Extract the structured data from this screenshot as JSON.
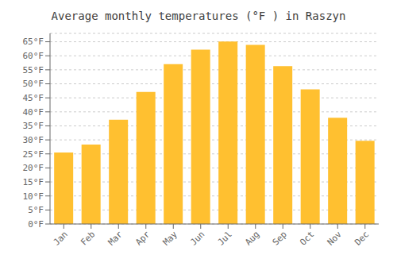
{
  "chart_data": {
    "type": "bar",
    "title": "Average monthly temperatures (°F ) in Raszyn",
    "categories": [
      "Jan",
      "Feb",
      "Mar",
      "Apr",
      "May",
      "Jun",
      "Jul",
      "Aug",
      "Sep",
      "Oct",
      "Nov",
      "Dec"
    ],
    "values": [
      25.5,
      28.3,
      37.2,
      47.1,
      57.0,
      62.2,
      65.1,
      63.9,
      56.3,
      48.0,
      37.9,
      29.7
    ],
    "color": "#FFC030",
    "ylim": [
      0,
      68
    ],
    "yticks": [
      {
        "value": 0,
        "label": "0°F"
      },
      {
        "value": 5,
        "label": "5°F"
      },
      {
        "value": 10,
        "label": "10°F"
      },
      {
        "value": 15,
        "label": "15°F"
      },
      {
        "value": 20,
        "label": "20°F"
      },
      {
        "value": 25,
        "label": "25°F"
      },
      {
        "value": 30,
        "label": "30°F"
      },
      {
        "value": 35,
        "label": "35°F"
      },
      {
        "value": 40,
        "label": "40°F"
      },
      {
        "value": 45,
        "label": "45°F"
      },
      {
        "value": 50,
        "label": "50°F"
      },
      {
        "value": 55,
        "label": "55°F"
      },
      {
        "value": 60,
        "label": "60°F"
      },
      {
        "value": 65,
        "label": "65°F"
      }
    ],
    "grid": true
  }
}
